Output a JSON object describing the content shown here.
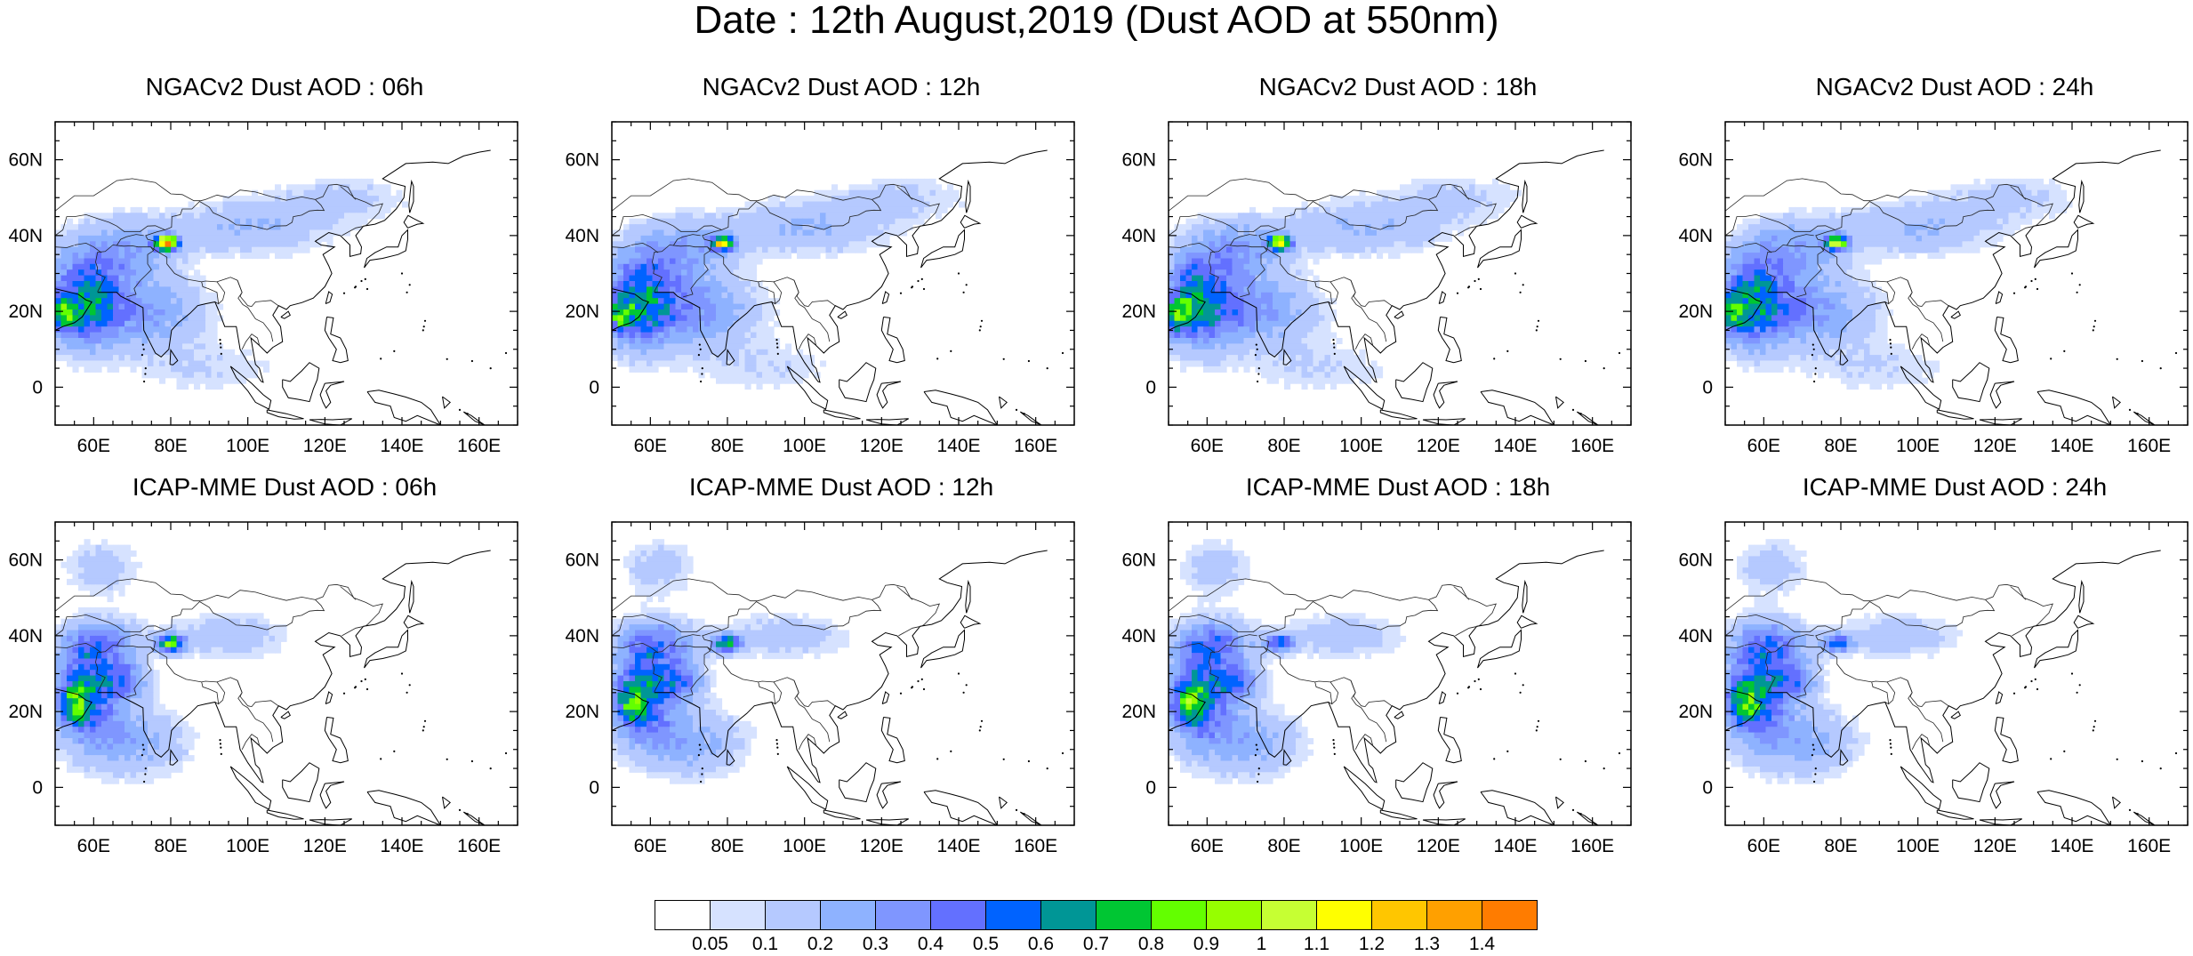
{
  "figure": {
    "title": "Date : 12th August,2019 (Dust AOD at 550nm)"
  },
  "map": {
    "lon_range": [
      50,
      170
    ],
    "lat_range": [
      -10,
      70
    ],
    "lon_ticks": [
      "60E",
      "80E",
      "100E",
      "120E",
      "140E",
      "160E"
    ],
    "lat_ticks": [
      "60N",
      "40N",
      "20N",
      "0"
    ]
  },
  "panels": [
    {
      "id": "ngac-06",
      "title": "NGACv2 Dust AOD : 06h",
      "model": "NGACv2",
      "hour": "06h",
      "peak": {
        "lon": 79,
        "lat": 38,
        "aod": 1.4
      }
    },
    {
      "id": "ngac-12",
      "title": "NGACv2 Dust AOD : 12h",
      "model": "NGACv2",
      "hour": "12h",
      "peak": {
        "lon": 79,
        "lat": 38,
        "aod": 1.1
      }
    },
    {
      "id": "ngac-18",
      "title": "NGACv2 Dust AOD : 18h",
      "model": "NGACv2",
      "hour": "18h",
      "peak": {
        "lon": 79,
        "lat": 38,
        "aod": 1.1
      }
    },
    {
      "id": "ngac-24",
      "title": "NGACv2 Dust AOD : 24h",
      "model": "NGACv2",
      "hour": "24h",
      "peak": {
        "lon": 79,
        "lat": 38,
        "aod": 1.0
      }
    },
    {
      "id": "icap-06",
      "title": "ICAP-MME Dust AOD : 06h",
      "model": "ICAP-MME",
      "hour": "06h",
      "peak": {
        "lon": 80,
        "lat": 38,
        "aod": 1.0
      }
    },
    {
      "id": "icap-12",
      "title": "ICAP-MME Dust AOD : 12h",
      "model": "ICAP-MME",
      "hour": "12h",
      "peak": {
        "lon": 80,
        "lat": 38,
        "aod": 0.9
      }
    },
    {
      "id": "icap-18",
      "title": "ICAP-MME Dust AOD : 18h",
      "model": "ICAP-MME",
      "hour": "18h",
      "peak": {
        "lon": 79,
        "lat": 38,
        "aod": 0.7
      }
    },
    {
      "id": "icap-24",
      "title": "ICAP-MME Dust AOD : 24h",
      "model": "ICAP-MME",
      "hour": "24h",
      "peak": {
        "lon": 79,
        "lat": 38,
        "aod": 0.7
      }
    }
  ],
  "colorbar": {
    "labels": [
      "0.05",
      "0.1",
      "0.2",
      "0.3",
      "0.4",
      "0.5",
      "0.6",
      "0.7",
      "0.8",
      "0.9",
      "1",
      "1.1",
      "1.2",
      "1.3",
      "1.4"
    ],
    "colors": [
      "#ffffff",
      "#d6e2ff",
      "#b5c9ff",
      "#8eb2ff",
      "#7f96ff",
      "#6370ff",
      "#0063ff",
      "#009696",
      "#00c633",
      "#63ff00",
      "#96ff00",
      "#c6ff33",
      "#ffff00",
      "#ffc600",
      "#ffa000",
      "#ff7c00",
      "#ff1900"
    ]
  }
}
